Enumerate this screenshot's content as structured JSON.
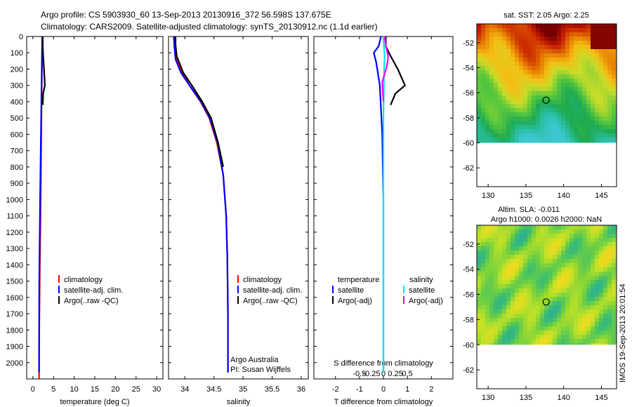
{
  "figure": {
    "title_line1": "Argo profile: CS 5903930_60 13-Sep-2013 20130916_372 56.598S 137.675E",
    "title_line2": "Climatology: CARS2009. Satellite-adjusted climatology: synTS_20130912.nc (1.1d earlier)",
    "side_stamp": "IMOS 19-Sep-2013 20:01:54",
    "credit_line1": "Argo Australia",
    "credit_line2": "PI: Susan Wijffels"
  },
  "legends": {
    "temp": [
      "climatology",
      "satellite-adj. clim.",
      "Argo(..raw -QC)"
    ],
    "sal": [
      "climatology",
      "satellite-adj. clim.",
      "Argo(..raw -QC)"
    ],
    "diff_head_t": "temperature",
    "diff_head_s": "salinity",
    "diff_t": [
      "satellite",
      "Argo(-adj)"
    ],
    "diff_s": [
      "satellite",
      "Argo(-adj)"
    ]
  },
  "maps": {
    "sst_title": "sat. SST: 2.05 Argo: 2.25",
    "sla_title_line1": "Altim. SLA: -0.011",
    "sla_title_line2": "Argo h1000: 0.0026 h2000: NaN",
    "xticks": [
      "130",
      "135",
      "140",
      "145"
    ],
    "yticks": [
      "-52",
      "-54",
      "-56",
      "-58",
      "-60",
      "-62"
    ],
    "marker_lon": 137.675,
    "marker_lat": -56.598,
    "xlim": [
      128.5,
      147
    ],
    "ylim": [
      -63.5,
      -50.5
    ],
    "data_lat_min": -60
  },
  "chart_data": [
    {
      "type": "line",
      "xlabel": "temperature (deg C)",
      "ylabel": "",
      "xlim": [
        -1.5,
        31.5
      ],
      "ylim": [
        2100,
        0
      ],
      "xticks": [
        0,
        5,
        10,
        15,
        20,
        25,
        30
      ],
      "yticks": [
        0,
        100,
        200,
        300,
        400,
        500,
        600,
        700,
        800,
        900,
        1000,
        1100,
        1200,
        1300,
        1400,
        1500,
        1600,
        1700,
        1800,
        1900,
        2000
      ],
      "series": [
        {
          "name": "climatology",
          "color": "#ff0000",
          "x": [
            2.3,
            2.3,
            2.25,
            2.2,
            2.1,
            2.0,
            1.9,
            1.7,
            1.55,
            1.5
          ],
          "y": [
            0,
            60,
            120,
            200,
            400,
            700,
            1000,
            1400,
            1800,
            2100
          ]
        },
        {
          "name": "satellite-adj. clim.",
          "color": "#0000ff",
          "x": [
            2.25,
            2.25,
            2.2,
            2.15,
            2.1,
            2.05,
            1.95,
            1.85,
            1.75,
            1.55,
            1.5
          ],
          "y": [
            0,
            40,
            100,
            200,
            300,
            400,
            600,
            800,
            1000,
            1500,
            2060
          ]
        },
        {
          "name": "Argo(..raw -QC)",
          "color": "#000000",
          "x": [
            2.4,
            2.4,
            2.5,
            2.7,
            2.9,
            2.5,
            2.4
          ],
          "y": [
            0,
            60,
            120,
            200,
            300,
            350,
            420
          ]
        }
      ]
    },
    {
      "type": "line",
      "xlabel": "salinity",
      "ylabel": "",
      "xlim": [
        33.72,
        36.12
      ],
      "ylim": [
        2100,
        0
      ],
      "xticks": [
        34,
        34.5,
        35,
        35.5,
        36
      ],
      "xticklabels": [
        "34",
        "34.5",
        "35",
        "35.5",
        "36"
      ],
      "series": [
        {
          "name": "climatology",
          "color": "#ff0000",
          "x": [
            33.82,
            33.83,
            33.86,
            33.95,
            34.08,
            34.27,
            34.42,
            34.55,
            34.66,
            34.71,
            34.73,
            34.74,
            34.74
          ],
          "y": [
            0,
            60,
            140,
            220,
            300,
            400,
            500,
            650,
            850,
            1100,
            1350,
            1700,
            2060
          ]
        },
        {
          "name": "satellite-adj. clim.",
          "color": "#0000ff",
          "x": [
            33.81,
            33.82,
            33.84,
            33.93,
            34.08,
            34.28,
            34.43,
            34.56,
            34.66,
            34.71,
            34.73,
            34.74,
            34.74
          ],
          "y": [
            0,
            60,
            140,
            220,
            300,
            400,
            500,
            650,
            850,
            1100,
            1350,
            1700,
            2060
          ]
        },
        {
          "name": "Argo(..raw -QC)",
          "color": "#000000",
          "x": [
            33.84,
            33.84,
            33.86,
            33.97,
            34.12,
            34.3,
            34.45,
            34.57,
            34.66
          ],
          "y": [
            0,
            50,
            120,
            220,
            300,
            400,
            500,
            650,
            800
          ]
        }
      ]
    },
    {
      "type": "line",
      "xlabel": "T difference from climatology",
      "xlabel_top": "S difference from climatology",
      "xlim": [
        -2.9,
        2.9
      ],
      "ylim": [
        2100,
        0
      ],
      "xticks_bottom": [
        -2,
        -1,
        0,
        1,
        2
      ],
      "xticklabels_bottom": [
        "-2",
        "-1",
        "0",
        "1",
        "2"
      ],
      "xticks_top": [
        -1.0,
        -0.5,
        0,
        0.5,
        1.0
      ],
      "xticklabels_top": [
        "-0.5",
        "-0.25",
        "0",
        "0.25",
        "0.5"
      ],
      "series": [
        {
          "name": "temperature satellite",
          "color": "#0000ff",
          "x": [
            -0.1,
            -0.2,
            -0.4,
            -0.3,
            -0.15,
            -0.05,
            0.0,
            0.0
          ],
          "y": [
            0,
            60,
            100,
            160,
            300,
            600,
            1000,
            2060
          ]
        },
        {
          "name": "temperature Argo(-adj)",
          "color": "#000000",
          "x": [
            0.1,
            0.1,
            0.3,
            0.6,
            0.9,
            0.5,
            0.3
          ],
          "y": [
            0,
            60,
            120,
            200,
            300,
            350,
            420
          ]
        },
        {
          "name": "salinity satellite",
          "color": "#00e5ee",
          "x": [
            0.0,
            0.02,
            0.05,
            0.03,
            0.0,
            0.0
          ],
          "y": [
            0,
            60,
            120,
            200,
            500,
            2060
          ]
        },
        {
          "name": "salinity Argo(-adj)",
          "color": "#ff00ff",
          "x": [
            0.05,
            0.1,
            0.2,
            0.15,
            -0.05,
            0.0
          ],
          "y": [
            0,
            60,
            120,
            180,
            280,
            400
          ]
        }
      ]
    }
  ]
}
